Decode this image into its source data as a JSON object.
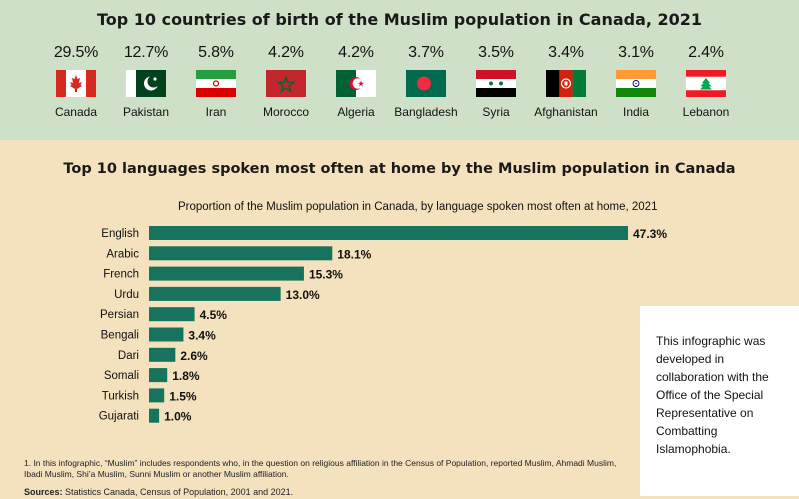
{
  "header": {
    "title": "Top 10 countries of birth of the Muslim population in Canada, 2021"
  },
  "countries": [
    {
      "pct": "29.5%",
      "name": "Canada",
      "flag": "canada-flag"
    },
    {
      "pct": "12.7%",
      "name": "Pakistan",
      "flag": "pakistan-flag"
    },
    {
      "pct": "5.8%",
      "name": "Iran",
      "flag": "iran-flag"
    },
    {
      "pct": "4.2%",
      "name": "Morocco",
      "flag": "morocco-flag"
    },
    {
      "pct": "4.2%",
      "name": "Algeria",
      "flag": "algeria-flag"
    },
    {
      "pct": "3.7%",
      "name": "Bangladesh",
      "flag": "bangladesh-flag"
    },
    {
      "pct": "3.5%",
      "name": "Syria",
      "flag": "syria-flag"
    },
    {
      "pct": "3.4%",
      "name": "Afghanistan",
      "flag": "afghanistan-flag"
    },
    {
      "pct": "3.1%",
      "name": "India",
      "flag": "india-flag"
    },
    {
      "pct": "2.4%",
      "name": "Lebanon",
      "flag": "lebanon-flag"
    }
  ],
  "languages_section": {
    "title": "Top 10 languages spoken most often at home by the Muslim population in Canada"
  },
  "chart_data": {
    "type": "bar",
    "orientation": "horizontal",
    "title": "Proportion of the Muslim population in Canada, by language spoken most often at home, 2021",
    "categories": [
      "English",
      "Arabic",
      "French",
      "Urdu",
      "Persian",
      "Bengali",
      "Dari",
      "Somali",
      "Turkish",
      "Gujarati"
    ],
    "values": [
      47.3,
      18.1,
      15.3,
      13.0,
      4.5,
      3.4,
      2.6,
      1.8,
      1.5,
      1.0
    ],
    "labels": [
      "47.3%",
      "18.1%",
      "15.3%",
      "13.0%",
      "4.5%",
      "3.4%",
      "2.6%",
      "1.8%",
      "1.5%",
      "1.0%"
    ],
    "bar_color": "#17735e",
    "xlim": [
      0,
      47.3
    ],
    "grid": false
  },
  "note": {
    "text": "This infographic was developed in collaboration with the Office of the Special Representative on Combatting Islamophobia."
  },
  "footnote": {
    "text": "1.  In this infographic, “Muslim” includes respondents who, in the question on religious affiliation in the Census of Population, reported Muslim, Ahmadi Muslim, Ibadi Muslim, Shi’a Muslim, Sunni Muslim or another Muslim affiliation."
  },
  "sources": {
    "label": "Sources:",
    "text": " Statistics Canada, Census of Population, 2001 and 2021."
  },
  "colors": {
    "top_panel": "#cfe0c8",
    "background": "#f3e2bd",
    "bar": "#17735e"
  }
}
